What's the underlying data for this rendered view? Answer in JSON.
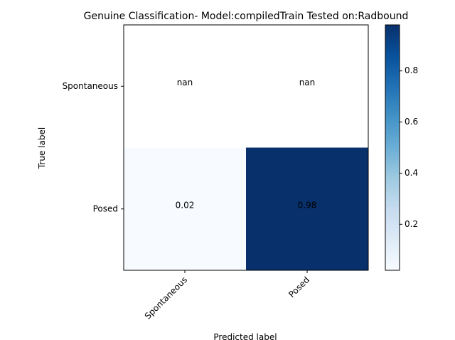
{
  "chart_data": {
    "type": "heatmap",
    "title": "Genuine Classification- Model:compiledTrain Tested on:Radbound",
    "xlabel": "Predicted label",
    "ylabel": "True label",
    "x_categories": [
      "Spontaneous",
      "Posed"
    ],
    "y_categories": [
      "Spontaneous",
      "Posed"
    ],
    "cell_labels": [
      [
        "nan",
        "nan"
      ],
      [
        "0.02",
        "0.98"
      ]
    ],
    "values": [
      [
        null,
        null
      ],
      [
        0.02,
        0.98
      ]
    ],
    "colormap": "Blues",
    "colorbar": {
      "range": [
        0.02,
        0.98
      ],
      "ticks": [
        0.2,
        0.4,
        0.6,
        0.8
      ],
      "tick_labels": [
        "0.2",
        "0.4",
        "0.6",
        "0.8"
      ]
    },
    "grid": false
  }
}
